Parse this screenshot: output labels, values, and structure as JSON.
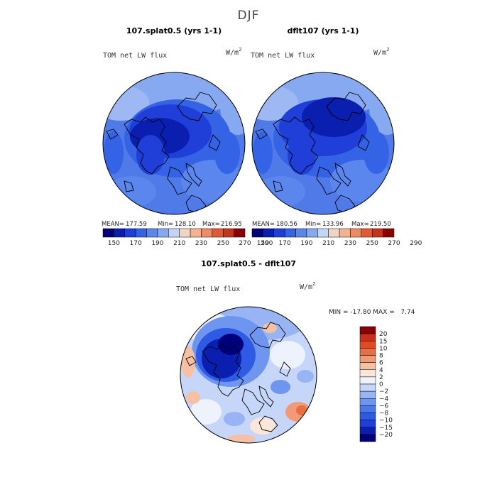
{
  "title": "DJF",
  "colors": {
    "abs_scale": [
      "#00007a",
      "#0a1fb0",
      "#1f3fd8",
      "#3463e6",
      "#5a86ee",
      "#87a9f2",
      "#c4d5f7",
      "#f2d4c4",
      "#f5b292",
      "#f08a60",
      "#e45a30",
      "#c8341a",
      "#8b0000"
    ],
    "diff_scale": [
      "#00007a",
      "#0a1fb0",
      "#1f3fd8",
      "#2f5ae6",
      "#4a78ec",
      "#6e96f0",
      "#98b4f4",
      "#c6d6f8",
      "#eef2fc",
      "#fce6d8",
      "#f6c0a4",
      "#f29a74",
      "#ea6e44",
      "#e04a24",
      "#c8301a",
      "#8b0000"
    ],
    "land_line": "#000000"
  },
  "panels": [
    {
      "name": "107.splat0.5 (yrs 1-1)",
      "variable": "TOM net LW flux",
      "units_base": "W/m",
      "units_exp": "2",
      "mean_label": "MEAN=",
      "mean": "177.59",
      "min_label": "Min=",
      "min": "128.10",
      "max_label": "Max=",
      "max": "216.95"
    },
    {
      "name": "dflt107 (yrs 1-1)",
      "variable": "TOM net LW flux",
      "units_base": "W/m",
      "units_exp": "2",
      "mean_label": "MEAN=",
      "mean": "180.56",
      "min_label": "Min=",
      "min": "133.96",
      "max_label": "Max=",
      "max": "219.50"
    }
  ],
  "diff_panel": {
    "name": "107.splat0.5 - dflt107",
    "variable": "TOM net LW flux",
    "units_base": "W/m",
    "units_exp": "2",
    "minmax_text": "MIN = -17.80 MAX =   7.74"
  },
  "chart_data": [
    {
      "type": "heatmap",
      "projection": "polar-stereographic (north pole)",
      "title": "107.splat0.5 (yrs 1-1)",
      "field": "TOM net LW flux",
      "units": "W/m2",
      "mean": 177.59,
      "min": 128.1,
      "max": 216.95,
      "colorbar_levels": [
        150,
        160,
        170,
        180,
        190,
        200,
        210,
        220,
        230,
        240,
        250,
        260,
        270,
        280,
        290
      ],
      "colorbar_tick_labels": [
        "150",
        "170",
        "190",
        "210",
        "230",
        "250",
        "270",
        "290"
      ]
    },
    {
      "type": "heatmap",
      "projection": "polar-stereographic (north pole)",
      "title": "dflt107 (yrs 1-1)",
      "field": "TOM net LW flux",
      "units": "W/m2",
      "mean": 180.56,
      "min": 133.96,
      "max": 219.5,
      "colorbar_levels": [
        150,
        160,
        170,
        180,
        190,
        200,
        210,
        220,
        230,
        240,
        250,
        260,
        270,
        280,
        290
      ],
      "colorbar_tick_labels": [
        "150",
        "170",
        "190",
        "210",
        "230",
        "250",
        "270",
        "290"
      ]
    },
    {
      "type": "heatmap",
      "projection": "polar-stereographic (north pole)",
      "title": "107.splat0.5 - dflt107",
      "field": "TOM net LW flux",
      "units": "W/m2",
      "min": -17.8,
      "max": 7.74,
      "colorbar_levels": [
        -20,
        -15,
        -10,
        -8,
        -6,
        -4,
        -2,
        0,
        2,
        4,
        6,
        8,
        10,
        15,
        20
      ],
      "colorbar_tick_labels": [
        "20",
        "15",
        "10",
        "8",
        "6",
        "4",
        "2",
        "0",
        "−2",
        "−4",
        "−6",
        "−8",
        "−10",
        "−15",
        "−20"
      ]
    }
  ]
}
